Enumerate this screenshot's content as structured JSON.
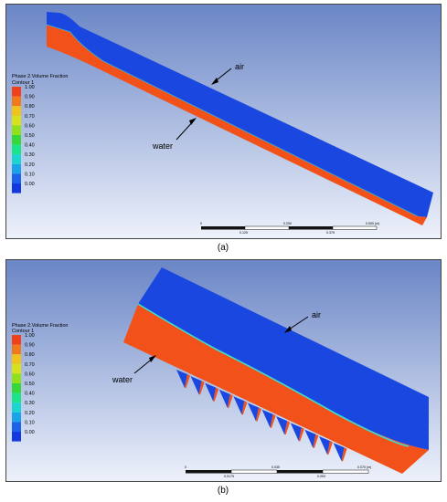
{
  "panels": [
    {
      "id": "a",
      "caption": "(a)",
      "legend": {
        "title": "Phase 2.Volume Fraction",
        "subtitle": "Contour 1",
        "labels": [
          "1.00",
          "0.90",
          "0.80",
          "0.70",
          "0.60",
          "0.50",
          "0.40",
          "0.30",
          "0.20",
          "0.10",
          "0.00"
        ]
      },
      "annotations": {
        "air": "air",
        "water": "water"
      },
      "scale": {
        "top": [
          "0",
          "0.250",
          "0.500 (m)"
        ],
        "bottom": [
          "0.125",
          "0.375"
        ]
      }
    },
    {
      "id": "b",
      "caption": "(b)",
      "legend": {
        "title": "Phase 2.Volume Fraction",
        "subtitle": "Contour 1",
        "labels": [
          "1.00",
          "0.90",
          "0.80",
          "0.70",
          "0.60",
          "0.50",
          "0.40",
          "0.30",
          "0.20",
          "0.10",
          "0.00"
        ]
      },
      "annotations": {
        "air": "air",
        "water": "water"
      },
      "scale": {
        "top": [
          "0",
          "0.035",
          "0.070 (m)"
        ],
        "bottom": [
          "0.0175",
          "0.053"
        ]
      }
    }
  ],
  "colors": {
    "air": "#1a47e0",
    "water": "#f2521a",
    "interface": "#3ce0d0",
    "legend": [
      "#f0411b",
      "#f07a1b",
      "#f0c21b",
      "#d8e21b",
      "#8fe21b",
      "#35d838",
      "#1be48a",
      "#1bd6cf",
      "#1ba2e8",
      "#1b62e8",
      "#1438e0"
    ]
  }
}
